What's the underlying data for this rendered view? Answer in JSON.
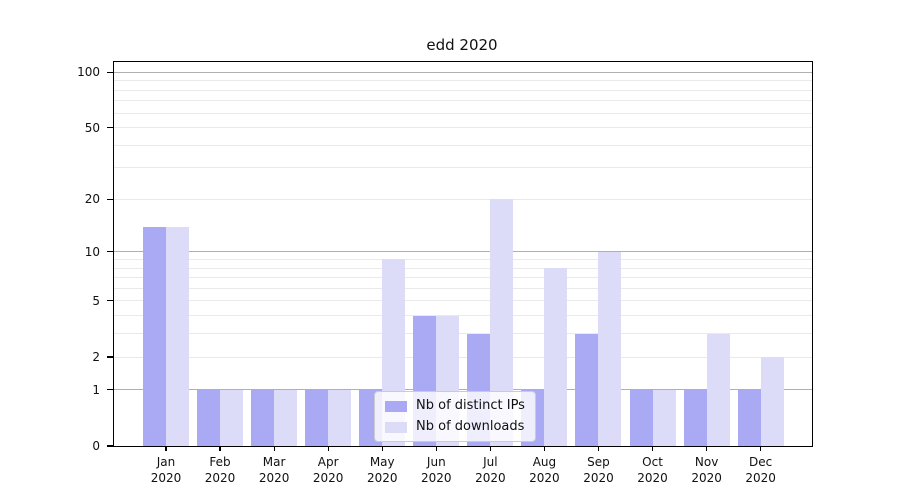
{
  "chart_data": {
    "type": "bar",
    "title": "edd 2020",
    "categories": [
      "Jan 2020",
      "Feb 2020",
      "Mar 2020",
      "Apr 2020",
      "May 2020",
      "Jun 2020",
      "Jul 2020",
      "Aug 2020",
      "Sep 2020",
      "Oct 2020",
      "Nov 2020",
      "Dec 2020"
    ],
    "series": [
      {
        "name": "Nb of distinct IPs",
        "color": "#a9a9f4",
        "values": [
          14,
          1,
          1,
          1,
          1,
          4,
          3,
          1,
          3,
          1,
          1,
          1
        ]
      },
      {
        "name": "Nb of downloads",
        "color": "#dcdcf9",
        "values": [
          14,
          1,
          1,
          1,
          9,
          4,
          20,
          8,
          10,
          1,
          3,
          2
        ]
      }
    ],
    "xlabel": "",
    "ylabel": "",
    "y_axis": {
      "scale": "log1p",
      "max": 113.5,
      "tick_values": [
        100,
        50,
        20,
        10,
        5,
        2,
        1,
        0
      ],
      "major_gridlines": [
        1,
        10,
        100
      ],
      "minor_gridlines": [
        2,
        3,
        4,
        5,
        6,
        7,
        8,
        9,
        20,
        30,
        40,
        50,
        60,
        70,
        80,
        90
      ],
      "major_grid_color": "#b0b0b0",
      "minor_grid_color": "#e9e9e9"
    },
    "legend": {
      "position": "lower center",
      "background": "rgba(255,255,255,0.8)",
      "border_color": "#cccccc"
    }
  }
}
